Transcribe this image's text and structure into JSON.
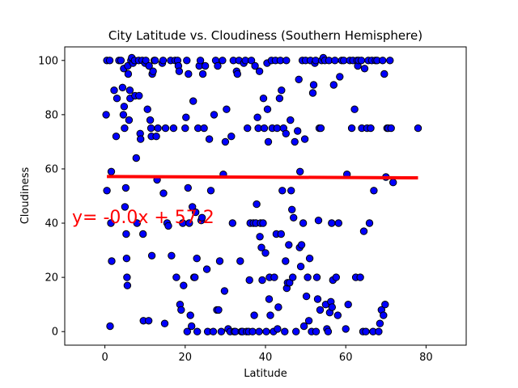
{
  "chart_data": {
    "type": "scatter",
    "title": "City Latitude vs. Cloudiness (Southern Hemisphere)",
    "xlabel": "Latitude",
    "ylabel": "Cloudiness",
    "xlim": [
      -10,
      90
    ],
    "ylim": [
      -5,
      105
    ],
    "xticks": [
      0,
      20,
      40,
      60,
      80
    ],
    "yticks": [
      0,
      20,
      40,
      60,
      80,
      100
    ],
    "grid": false,
    "colors": {
      "marker_fill": "#0000ff",
      "marker_edge": "#000000",
      "regression": "#ff0000",
      "annotation": "#ff0000"
    },
    "regression": {
      "x": [
        0.5,
        78
      ],
      "y": [
        57.2,
        56.7
      ]
    },
    "annotation": "y= -0.0x + 57.2",
    "points": [
      [
        0.3,
        80
      ],
      [
        0.5,
        52
      ],
      [
        0.5,
        100
      ],
      [
        1.2,
        100
      ],
      [
        1.3,
        2
      ],
      [
        1.5,
        40
      ],
      [
        1.6,
        59
      ],
      [
        1.7,
        26
      ],
      [
        2.3,
        89
      ],
      [
        2.8,
        72
      ],
      [
        3.0,
        86
      ],
      [
        3.5,
        100
      ],
      [
        4.0,
        100
      ],
      [
        4.4,
        90
      ],
      [
        4.6,
        80
      ],
      [
        4.7,
        97
      ],
      [
        4.8,
        83
      ],
      [
        4.9,
        75
      ],
      [
        5.0,
        46
      ],
      [
        5.2,
        53
      ],
      [
        5.3,
        36
      ],
      [
        5.4,
        27
      ],
      [
        5.5,
        20
      ],
      [
        5.6,
        17
      ],
      [
        5.7,
        98
      ],
      [
        5.8,
        95
      ],
      [
        6.0,
        78
      ],
      [
        6.2,
        89
      ],
      [
        6.3,
        86
      ],
      [
        6.5,
        100
      ],
      [
        6.7,
        101
      ],
      [
        7.0,
        99
      ],
      [
        7.4,
        100
      ],
      [
        7.5,
        87
      ],
      [
        7.8,
        64
      ],
      [
        8.0,
        40
      ],
      [
        8.4,
        100
      ],
      [
        8.5,
        87
      ],
      [
        8.8,
        73
      ],
      [
        8.9,
        71
      ],
      [
        9.3,
        100
      ],
      [
        9.5,
        36
      ],
      [
        9.6,
        4
      ],
      [
        10.0,
        99
      ],
      [
        10.2,
        100
      ],
      [
        10.6,
        82
      ],
      [
        10.9,
        4
      ],
      [
        11.0,
        98
      ],
      [
        11.3,
        78
      ],
      [
        11.5,
        75
      ],
      [
        11.6,
        72
      ],
      [
        11.7,
        28
      ],
      [
        11.8,
        95
      ],
      [
        12.0,
        96
      ],
      [
        12.3,
        100
      ],
      [
        12.5,
        100
      ],
      [
        12.8,
        72
      ],
      [
        13.0,
        56
      ],
      [
        13.2,
        75
      ],
      [
        14.3,
        99
      ],
      [
        14.5,
        100
      ],
      [
        14.6,
        51
      ],
      [
        14.9,
        3
      ],
      [
        15.1,
        75
      ],
      [
        15.5,
        40
      ],
      [
        15.8,
        39
      ],
      [
        16.4,
        100
      ],
      [
        16.6,
        28
      ],
      [
        17.1,
        75
      ],
      [
        17.5,
        100
      ],
      [
        17.8,
        20
      ],
      [
        18.1,
        100
      ],
      [
        18.3,
        98
      ],
      [
        18.5,
        96
      ],
      [
        18.7,
        10
      ],
      [
        19.0,
        8
      ],
      [
        19.4,
        40
      ],
      [
        19.6,
        17
      ],
      [
        20.0,
        75
      ],
      [
        20.2,
        79
      ],
      [
        20.4,
        100
      ],
      [
        20.5,
        0
      ],
      [
        20.7,
        53
      ],
      [
        20.8,
        95
      ],
      [
        21.0,
        40
      ],
      [
        21.3,
        6
      ],
      [
        21.6,
        2
      ],
      [
        21.8,
        46
      ],
      [
        22.0,
        85
      ],
      [
        22.2,
        20
      ],
      [
        22.4,
        20
      ],
      [
        22.6,
        44
      ],
      [
        22.9,
        27
      ],
      [
        23.0,
        0
      ],
      [
        23.2,
        75
      ],
      [
        23.5,
        98
      ],
      [
        23.8,
        100
      ],
      [
        24.0,
        41
      ],
      [
        24.2,
        42
      ],
      [
        24.4,
        95
      ],
      [
        24.7,
        75
      ],
      [
        25.0,
        98
      ],
      [
        25.4,
        23
      ],
      [
        25.6,
        0
      ],
      [
        26.0,
        71
      ],
      [
        26.4,
        52
      ],
      [
        27.0,
        0
      ],
      [
        27.2,
        80
      ],
      [
        27.6,
        100
      ],
      [
        27.9,
        8
      ],
      [
        28.1,
        98
      ],
      [
        28.3,
        8
      ],
      [
        28.6,
        26
      ],
      [
        29.0,
        0
      ],
      [
        29.3,
        100
      ],
      [
        29.5,
        58
      ],
      [
        29.8,
        15
      ],
      [
        30.0,
        70
      ],
      [
        30.3,
        82
      ],
      [
        30.7,
        1
      ],
      [
        31.2,
        0
      ],
      [
        31.5,
        72
      ],
      [
        31.8,
        40
      ],
      [
        32.0,
        100
      ],
      [
        32.2,
        0
      ],
      [
        32.5,
        0
      ],
      [
        32.8,
        96
      ],
      [
        33.0,
        95
      ],
      [
        33.4,
        100
      ],
      [
        33.7,
        26
      ],
      [
        34.0,
        0
      ],
      [
        34.3,
        0
      ],
      [
        34.6,
        99
      ],
      [
        35.0,
        100
      ],
      [
        35.3,
        0
      ],
      [
        35.5,
        75
      ],
      [
        35.8,
        0
      ],
      [
        36.0,
        19
      ],
      [
        36.2,
        40
      ],
      [
        36.5,
        100
      ],
      [
        36.8,
        0
      ],
      [
        37.0,
        40
      ],
      [
        37.2,
        6
      ],
      [
        37.4,
        98
      ],
      [
        37.6,
        40
      ],
      [
        37.8,
        47
      ],
      [
        38.0,
        79
      ],
      [
        38.2,
        75
      ],
      [
        38.4,
        0
      ],
      [
        38.5,
        96
      ],
      [
        38.6,
        35
      ],
      [
        38.8,
        40
      ],
      [
        39.0,
        31
      ],
      [
        39.2,
        19
      ],
      [
        39.4,
        40
      ],
      [
        39.5,
        86
      ],
      [
        39.7,
        75
      ],
      [
        40.0,
        29
      ],
      [
        40.2,
        0
      ],
      [
        40.4,
        99
      ],
      [
        40.5,
        82
      ],
      [
        40.7,
        70
      ],
      [
        40.9,
        12
      ],
      [
        41.0,
        20
      ],
      [
        41.2,
        6
      ],
      [
        41.5,
        100
      ],
      [
        41.7,
        75
      ],
      [
        42.0,
        0
      ],
      [
        42.2,
        20
      ],
      [
        42.5,
        100
      ],
      [
        42.7,
        36
      ],
      [
        42.9,
        75
      ],
      [
        43.0,
        1
      ],
      [
        43.2,
        9
      ],
      [
        43.5,
        86
      ],
      [
        43.7,
        100
      ],
      [
        43.9,
        36
      ],
      [
        44.0,
        89
      ],
      [
        44.2,
        52
      ],
      [
        44.5,
        75
      ],
      [
        44.8,
        0
      ],
      [
        45.0,
        26
      ],
      [
        45.1,
        73
      ],
      [
        45.2,
        100
      ],
      [
        45.3,
        16
      ],
      [
        45.5,
        18
      ],
      [
        45.8,
        32
      ],
      [
        46.0,
        18
      ],
      [
        46.2,
        78
      ],
      [
        46.4,
        52
      ],
      [
        46.6,
        45
      ],
      [
        46.8,
        20
      ],
      [
        47.0,
        42
      ],
      [
        47.3,
        70
      ],
      [
        47.6,
        0
      ],
      [
        48.0,
        74
      ],
      [
        48.3,
        93
      ],
      [
        48.5,
        31
      ],
      [
        48.6,
        59
      ],
      [
        48.8,
        24
      ],
      [
        49.0,
        32
      ],
      [
        49.2,
        100
      ],
      [
        49.4,
        40
      ],
      [
        49.6,
        2
      ],
      [
        49.8,
        71
      ],
      [
        50.0,
        100
      ],
      [
        50.2,
        13
      ],
      [
        50.5,
        20
      ],
      [
        50.8,
        4
      ],
      [
        51.0,
        27
      ],
      [
        51.2,
        100
      ],
      [
        51.5,
        0
      ],
      [
        51.8,
        88
      ],
      [
        52.0,
        91
      ],
      [
        52.3,
        99
      ],
      [
        52.5,
        100
      ],
      [
        52.6,
        0
      ],
      [
        52.8,
        20
      ],
      [
        53.0,
        12
      ],
      [
        53.2,
        41
      ],
      [
        53.4,
        75
      ],
      [
        53.6,
        8
      ],
      [
        53.8,
        75
      ],
      [
        54.0,
        100
      ],
      [
        54.4,
        101
      ],
      [
        54.8,
        100
      ],
      [
        55.0,
        10
      ],
      [
        55.3,
        1
      ],
      [
        55.6,
        0
      ],
      [
        55.8,
        100
      ],
      [
        56.0,
        7
      ],
      [
        56.3,
        11
      ],
      [
        56.5,
        40
      ],
      [
        56.6,
        9
      ],
      [
        56.8,
        19
      ],
      [
        57.0,
        91
      ],
      [
        57.3,
        100
      ],
      [
        57.6,
        20
      ],
      [
        58.0,
        6
      ],
      [
        58.2,
        40
      ],
      [
        58.5,
        94
      ],
      [
        59.0,
        100
      ],
      [
        59.5,
        100
      ],
      [
        60.0,
        1
      ],
      [
        60.3,
        58
      ],
      [
        60.6,
        10
      ],
      [
        61.0,
        100
      ],
      [
        61.5,
        75
      ],
      [
        61.8,
        100
      ],
      [
        62.2,
        82
      ],
      [
        62.5,
        20
      ],
      [
        62.8,
        100
      ],
      [
        63.0,
        98
      ],
      [
        63.2,
        100
      ],
      [
        63.6,
        20
      ],
      [
        63.9,
        100
      ],
      [
        64.0,
        75
      ],
      [
        64.3,
        0
      ],
      [
        64.5,
        37
      ],
      [
        64.7,
        97
      ],
      [
        65.0,
        0
      ],
      [
        65.3,
        75
      ],
      [
        65.6,
        100
      ],
      [
        65.9,
        40
      ],
      [
        66.2,
        75
      ],
      [
        66.5,
        100
      ],
      [
        66.8,
        0
      ],
      [
        67.0,
        52
      ],
      [
        67.4,
        100
      ],
      [
        67.8,
        100
      ],
      [
        68.2,
        0
      ],
      [
        68.5,
        3
      ],
      [
        68.9,
        8
      ],
      [
        69.2,
        100
      ],
      [
        69.4,
        6
      ],
      [
        69.6,
        95
      ],
      [
        69.8,
        10
      ],
      [
        70.0,
        57
      ],
      [
        70.3,
        75
      ],
      [
        70.6,
        75
      ],
      [
        71.0,
        100
      ],
      [
        71.3,
        75
      ],
      [
        71.8,
        55
      ],
      [
        78.0,
        75
      ]
    ]
  }
}
